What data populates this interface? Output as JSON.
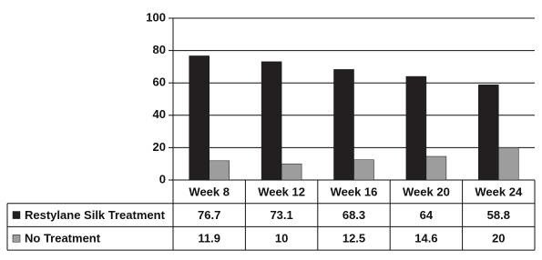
{
  "chart_data": {
    "type": "bar",
    "categories": [
      "Week 8",
      "Week 12",
      "Week 16",
      "Week 20",
      "Week 24"
    ],
    "series": [
      {
        "name": "Restylane Silk Treatment",
        "color": "#231f20",
        "values": [
          76.7,
          73.1,
          68.3,
          64,
          58.8
        ]
      },
      {
        "name": "No Treatment",
        "color": "#9d9d9d",
        "values": [
          11.9,
          10,
          12.5,
          14.6,
          20
        ]
      }
    ],
    "ylim": [
      0,
      100
    ],
    "yticks": [
      0,
      20,
      40,
      60,
      80,
      100
    ],
    "grid": true
  }
}
